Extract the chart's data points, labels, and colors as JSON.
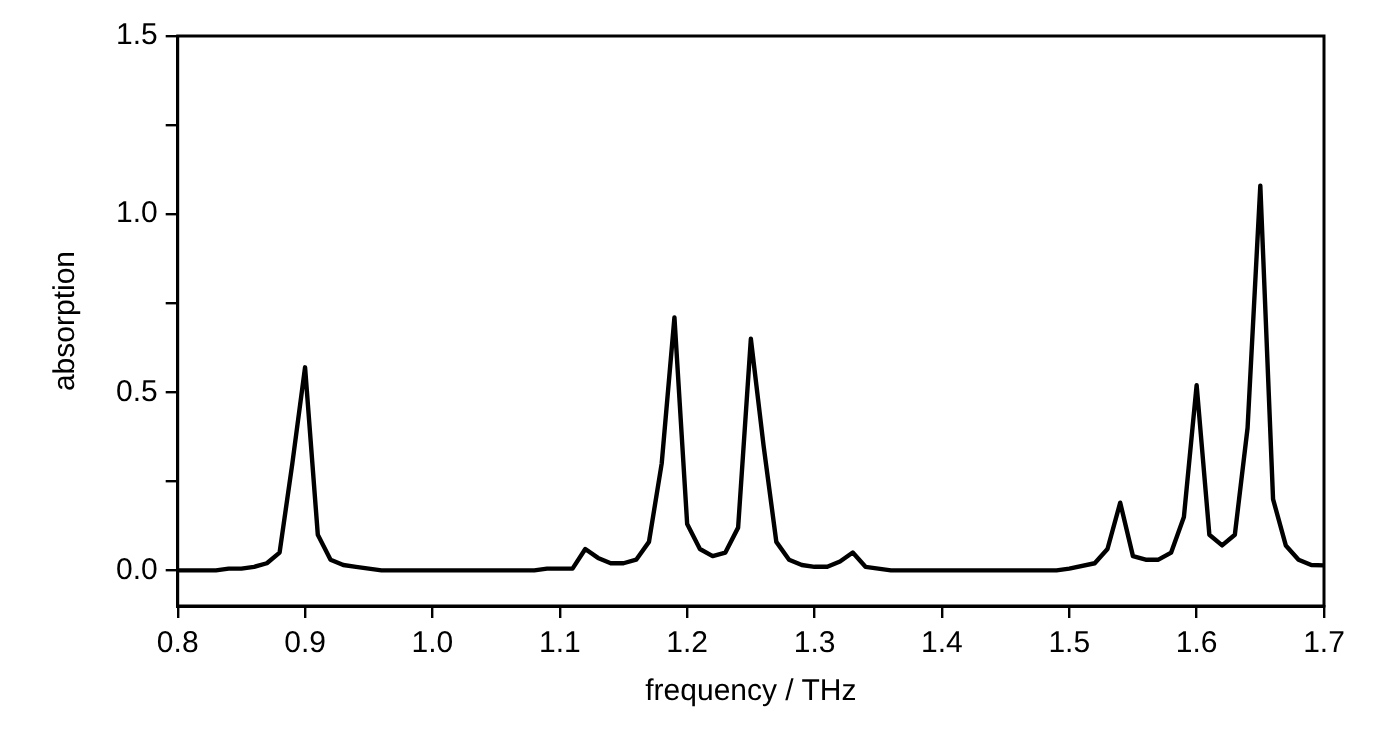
{
  "chart_data": {
    "type": "line",
    "xlabel": "frequency / THz",
    "ylabel": "absorption",
    "color": "#000000",
    "marker": "none",
    "line_style": "solid",
    "grid": false,
    "legend": false,
    "x": [
      0.8,
      0.83,
      0.84,
      0.85,
      0.86,
      0.87,
      0.88,
      0.89,
      0.9,
      0.91,
      0.92,
      0.93,
      0.94,
      0.95,
      0.96,
      1.08,
      1.09,
      1.11,
      1.12,
      1.13,
      1.14,
      1.15,
      1.16,
      1.17,
      1.18,
      1.19,
      1.2,
      1.21,
      1.22,
      1.23,
      1.24,
      1.25,
      1.26,
      1.27,
      1.28,
      1.29,
      1.3,
      1.31,
      1.32,
      1.33,
      1.34,
      1.36,
      1.49,
      1.5,
      1.52,
      1.53,
      1.54,
      1.55,
      1.56,
      1.57,
      1.58,
      1.59,
      1.6,
      1.61,
      1.62,
      1.63,
      1.64,
      1.65,
      1.66,
      1.67,
      1.68,
      1.69,
      1.7
    ],
    "values": [
      0,
      0,
      0.005,
      0.005,
      0.01,
      0.02,
      0.05,
      0.3,
      0.57,
      0.1,
      0.03,
      0.015,
      0.01,
      0.005,
      0,
      0,
      0.005,
      0.005,
      0.06,
      0.035,
      0.02,
      0.02,
      0.03,
      0.08,
      0.3,
      0.71,
      0.13,
      0.06,
      0.04,
      0.05,
      0.12,
      0.65,
      0.35,
      0.08,
      0.03,
      0.015,
      0.01,
      0.01,
      0.025,
      0.05,
      0.01,
      0,
      0,
      0.005,
      0.02,
      0.06,
      0.19,
      0.04,
      0.03,
      0.03,
      0.05,
      0.15,
      0.52,
      0.1,
      0.07,
      0.1,
      0.4,
      1.08,
      0.2,
      0.07,
      0.03,
      0.015,
      0.014
    ],
    "xlim": [
      0.8,
      1.7
    ],
    "ylim": [
      -0.1,
      1.5
    ],
    "xticks": [
      0.8,
      0.9,
      {
        "value": 1,
        "label": "1.0"
      },
      1.1,
      1.2,
      1.3,
      1.4,
      1.5,
      1.6,
      1.7
    ],
    "yticks": [
      {
        "value": 0,
        "label": "0.0"
      },
      {
        "value": 0.25,
        "label": null
      },
      0.5,
      {
        "value": 0.75,
        "label": null
      },
      {
        "value": 1,
        "label": "1.0"
      },
      {
        "value": 1.25,
        "label": null
      },
      1.5
    ]
  }
}
